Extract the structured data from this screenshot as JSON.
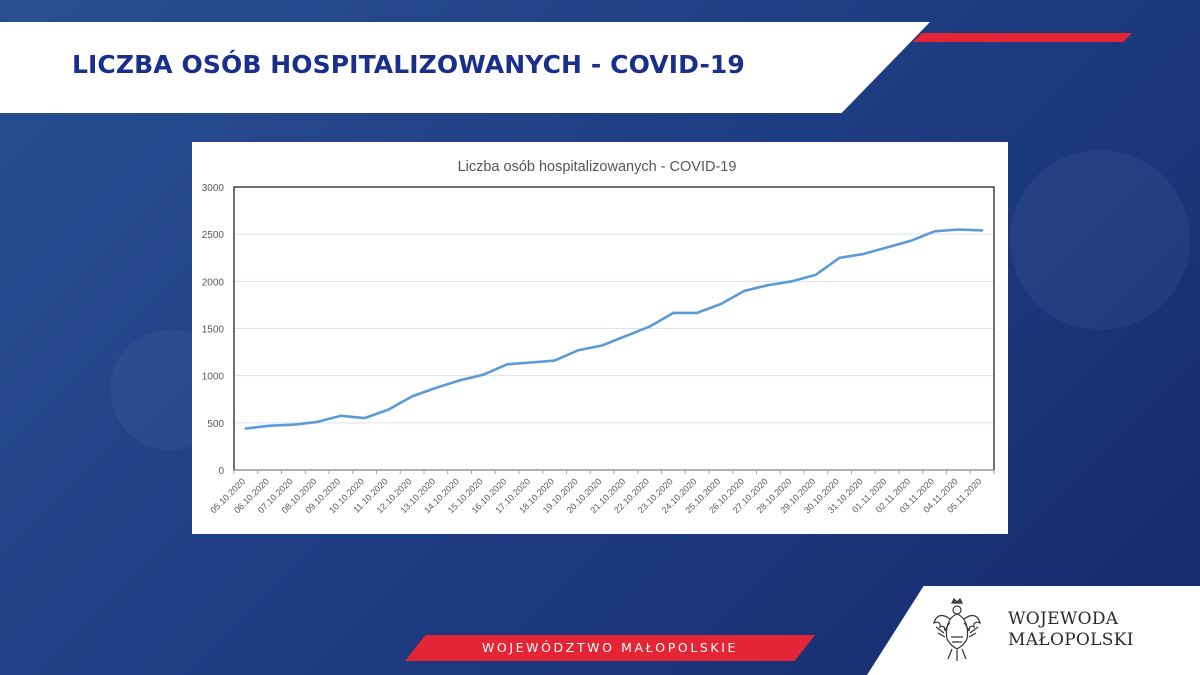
{
  "header": {
    "title": "LICZBA OSÓB HOSPITALIZOWANYCH - COVID-19"
  },
  "footer": {
    "label": "WOJEWÓDZTWO MAŁOPOLSKIE"
  },
  "logo": {
    "line1": "WOJEWODA",
    "line2": "MAŁOPOLSKI",
    "icon": "eagle-icon"
  },
  "colors": {
    "accent_red": "#e52535",
    "title_blue": "#1a2f8c",
    "line_blue": "#5b9bd5",
    "background_blue": "#203f86"
  },
  "chart_data": {
    "type": "line",
    "title": "Liczba osób hospitalizowanych - COVID-19",
    "xlabel": "",
    "ylabel": "",
    "ylim": [
      0,
      3000
    ],
    "yticks": [
      0,
      500,
      1000,
      1500,
      2000,
      2500,
      3000
    ],
    "grid": true,
    "legend": "none",
    "categories": [
      "05.10.2020",
      "06.10.2020",
      "07.10.2020",
      "08.10.2020",
      "09.10.2020",
      "10.10.2020",
      "11.10.2020",
      "12.10.2020",
      "13.10.2020",
      "14.10.2020",
      "15.10.2020",
      "16.10.2020",
      "17.10.2020",
      "18.10.2020",
      "19.10.2020",
      "20.10.2020",
      "21.10.2020",
      "22.10.2020",
      "23.10.2020",
      "24.10.2020",
      "25.10.2020",
      "26.10.2020",
      "27.10.2020",
      "28.10.2020",
      "29.10.2020",
      "30.10.2020",
      "31.10.2020",
      "01.11.2020",
      "02.11.2020",
      "03.11.2020",
      "04.11.2020",
      "05.11.2020"
    ],
    "series": [
      {
        "name": "",
        "color": "#5b9bd5",
        "values": [
          440,
          470,
          480,
          510,
          575,
          550,
          640,
          780,
          870,
          950,
          1010,
          1120,
          1140,
          1160,
          1270,
          1320,
          1420,
          1520,
          1665,
          1665,
          1760,
          1900,
          1960,
          2000,
          2070,
          2250,
          2290,
          2360,
          2430,
          2530,
          2550,
          2540
        ]
      }
    ]
  }
}
